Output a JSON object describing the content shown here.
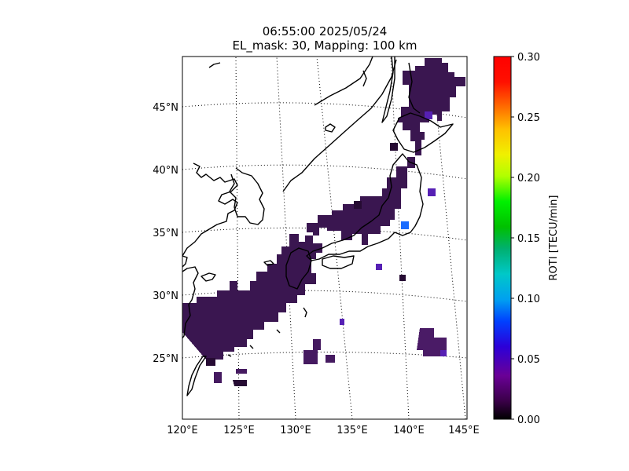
{
  "title": {
    "line1": "06:55:00 2025/05/24",
    "line2": "EL_mask: 30, Mapping: 100 km"
  },
  "map": {
    "lat_labels": [
      "25°N",
      "30°N",
      "35°N",
      "40°N",
      "45°N"
    ],
    "lon_labels": [
      "120°E",
      "125°E",
      "130°E",
      "135°E",
      "140°E",
      "145°E"
    ],
    "coastline_color": "#000000",
    "gridline_style": "dotted"
  },
  "colorbar": {
    "label": "ROTI [TECU/min]",
    "min": 0.0,
    "max": 0.3,
    "ticks": [
      "0.00",
      "0.05",
      "0.10",
      "0.15",
      "0.20",
      "0.25",
      "0.30"
    ],
    "colormap": "nipy_spectral-like (black-purple-blue-cyan-green-yellow-red)"
  },
  "chart_data": {
    "type": "heatmap",
    "description_free": true,
    "typical_roti": 0.03,
    "cells_lonlat_roti": [
      [
        124.5,
        24.5,
        0.02
      ],
      [
        125.5,
        24.4,
        0.04
      ],
      [
        126.5,
        24.8,
        0.03
      ],
      [
        127.5,
        25.6,
        0.03
      ],
      [
        128.5,
        26.5,
        0.03
      ],
      [
        129.5,
        27.8,
        0.03
      ],
      [
        130.0,
        29.0,
        0.03
      ],
      [
        130.5,
        30.5,
        0.03
      ],
      [
        131.0,
        32.0,
        0.03
      ],
      [
        130.0,
        33.0,
        0.03
      ],
      [
        132.0,
        33.5,
        0.03
      ],
      [
        133.5,
        34.0,
        0.03
      ],
      [
        135.0,
        34.5,
        0.03
      ],
      [
        136.5,
        35.0,
        0.03
      ],
      [
        138.0,
        35.5,
        0.03
      ],
      [
        139.5,
        35.6,
        0.07
      ],
      [
        140.0,
        36.5,
        0.03
      ],
      [
        140.5,
        38.0,
        0.03
      ],
      [
        141.0,
        40.0,
        0.03
      ],
      [
        142.0,
        42.5,
        0.03
      ],
      [
        143.5,
        43.0,
        0.03
      ],
      [
        142.0,
        44.5,
        0.04
      ],
      [
        141.5,
        26.3,
        0.04
      ],
      [
        141.0,
        39.0,
        0.05
      ]
    ]
  }
}
